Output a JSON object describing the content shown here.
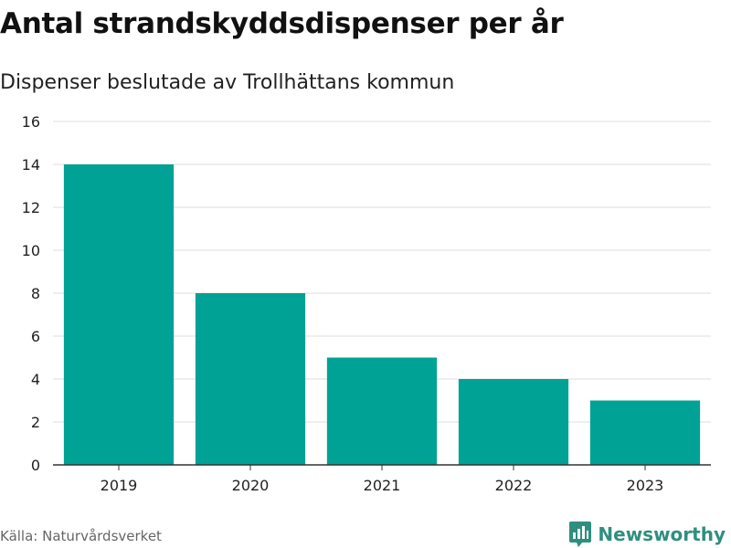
{
  "header": {
    "title": "Antal strandskyddsdispenser per år",
    "subtitle": "Dispenser beslutade av Trollhättans kommun"
  },
  "footer": {
    "source": "Källa: Naturvårdsverket",
    "brand": "Newsworthy",
    "brand_icon": "newsworthy-logo-icon"
  },
  "colors": {
    "bar": "#00a295",
    "grid": "#dddddd",
    "axis": "#333333",
    "brand": "#2f8f7f"
  },
  "chart_data": {
    "type": "bar",
    "title": "Antal strandskyddsdispenser per år",
    "subtitle": "Dispenser beslutade av Trollhättans kommun",
    "categories": [
      "2019",
      "2020",
      "2021",
      "2022",
      "2023"
    ],
    "values": [
      14,
      8,
      5,
      4,
      3
    ],
    "xlabel": "",
    "ylabel": "",
    "ylim": [
      0,
      16
    ],
    "yticks": [
      "0",
      "2",
      "4",
      "6",
      "8",
      "10",
      "12",
      "14",
      "16"
    ],
    "grid": true,
    "legend": "none"
  }
}
